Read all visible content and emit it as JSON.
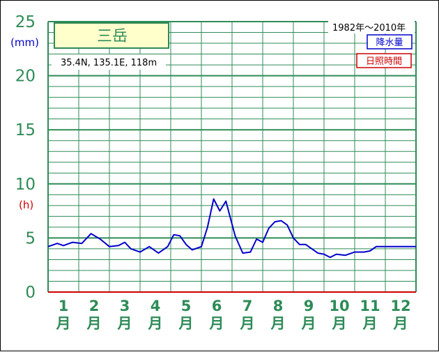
{
  "chart_data": {
    "type": "line",
    "title": "三岳",
    "location": "35.4N,  135.1E,  118m",
    "period": "1982年〜2010年",
    "y_unit_left": "(mm)",
    "y_unit_right": "(h)",
    "ylim": [
      0,
      25
    ],
    "yticks": [
      "0",
      "5",
      "10",
      "15",
      "20",
      "25"
    ],
    "months": [
      "1",
      "2",
      "3",
      "4",
      "5",
      "6",
      "7",
      "8",
      "9",
      "10",
      "11",
      "12"
    ],
    "month_suffix": "月",
    "grid": true,
    "legend_position": "top-right",
    "colors": {
      "precipitation": "#0000cc",
      "sunshine": "#cc0000",
      "grid": "#2e8b57",
      "title_box_fill": "#ffffcc"
    },
    "series": [
      {
        "name": "降水量",
        "x": [
          0.5,
          0.8,
          1.0,
          1.3,
          1.6,
          1.9,
          2.2,
          2.5,
          2.8,
          3.0,
          3.2,
          3.5,
          3.8,
          4.1,
          4.4,
          4.6,
          4.8,
          5.0,
          5.2,
          5.5,
          5.7,
          5.9,
          6.1,
          6.3,
          6.6,
          6.85,
          7.1,
          7.3,
          7.5,
          7.7,
          7.9,
          8.1,
          8.3,
          8.5,
          8.7,
          8.9,
          9.1,
          9.3,
          9.5,
          9.7,
          9.9,
          10.2,
          10.5,
          10.8,
          11.0,
          11.2,
          11.5,
          11.8,
          12.0,
          12.2,
          12.5
        ],
        "values": [
          4.2,
          4.5,
          4.3,
          4.6,
          4.5,
          5.4,
          4.9,
          4.2,
          4.3,
          4.6,
          4.0,
          3.7,
          4.2,
          3.6,
          4.2,
          5.3,
          5.2,
          4.4,
          3.9,
          4.2,
          6.0,
          8.6,
          7.5,
          8.4,
          5.2,
          3.6,
          3.7,
          4.9,
          4.6,
          5.9,
          6.5,
          6.6,
          6.2,
          5.0,
          4.4,
          4.4,
          4.0,
          3.6,
          3.5,
          3.2,
          3.5,
          3.4,
          3.7,
          3.7,
          3.8,
          4.2,
          4.2,
          4.2,
          4.2,
          4.2,
          4.2
        ]
      },
      {
        "name": "日照時間",
        "x": [
          0.5,
          12.5
        ],
        "values": [
          0,
          0
        ]
      }
    ]
  }
}
